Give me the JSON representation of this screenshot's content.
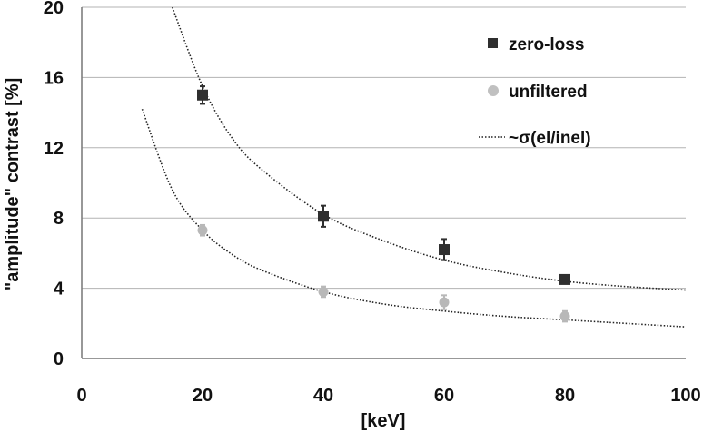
{
  "chart_data": {
    "type": "scatter",
    "title": "",
    "xlabel": "[keV]",
    "ylabel": "\"amplitude\" contrast [%]",
    "xlim": [
      0,
      100
    ],
    "ylim": [
      0,
      20
    ],
    "xticks": [
      0,
      20,
      40,
      60,
      80,
      100
    ],
    "yticks": [
      0,
      4,
      8,
      12,
      16,
      20
    ],
    "grid": "horizontal",
    "legend_position": "top-right",
    "series": [
      {
        "name": "zero-loss",
        "marker": "square",
        "color": "#2f2f2f",
        "points": [
          {
            "x": 20,
            "y": 15.0,
            "err": 0.5
          },
          {
            "x": 40,
            "y": 8.1,
            "err": 0.6
          },
          {
            "x": 60,
            "y": 6.2,
            "err": 0.6
          },
          {
            "x": 80,
            "y": 4.5,
            "err": 0.2
          }
        ]
      },
      {
        "name": "unfiltered",
        "marker": "circle",
        "color": "#b8b8b8",
        "points": [
          {
            "x": 20,
            "y": 7.3,
            "err": 0.3
          },
          {
            "x": 40,
            "y": 3.8,
            "err": 0.3
          },
          {
            "x": 60,
            "y": 3.2,
            "err": 0.4
          },
          {
            "x": 80,
            "y": 2.4,
            "err": 0.3
          }
        ]
      }
    ],
    "fits": [
      {
        "name": "~σ(el/inel)",
        "style": "dotted",
        "color": "#222222",
        "x": [
          15,
          20,
          25,
          30,
          40,
          50,
          60,
          70,
          80,
          90,
          100
        ],
        "y": [
          20.0,
          15.5,
          12.5,
          10.7,
          8.2,
          6.7,
          5.6,
          4.9,
          4.4,
          4.1,
          3.9
        ]
      },
      {
        "name": "",
        "style": "dotted",
        "color": "#222222",
        "x": [
          10,
          15,
          20,
          25,
          30,
          40,
          50,
          60,
          70,
          80,
          90,
          100
        ],
        "y": [
          14.2,
          9.6,
          7.3,
          5.9,
          5.0,
          3.8,
          3.1,
          2.7,
          2.4,
          2.2,
          2.0,
          1.8
        ]
      }
    ],
    "legend": [
      {
        "label": "zero-loss",
        "symbol": "square",
        "color": "#2f2f2f"
      },
      {
        "label": "unfiltered",
        "symbol": "circle",
        "color": "#c0c0c0"
      },
      {
        "label": "~σ(el/inel)",
        "symbol": "dotted-line",
        "color": "#222222"
      }
    ]
  }
}
